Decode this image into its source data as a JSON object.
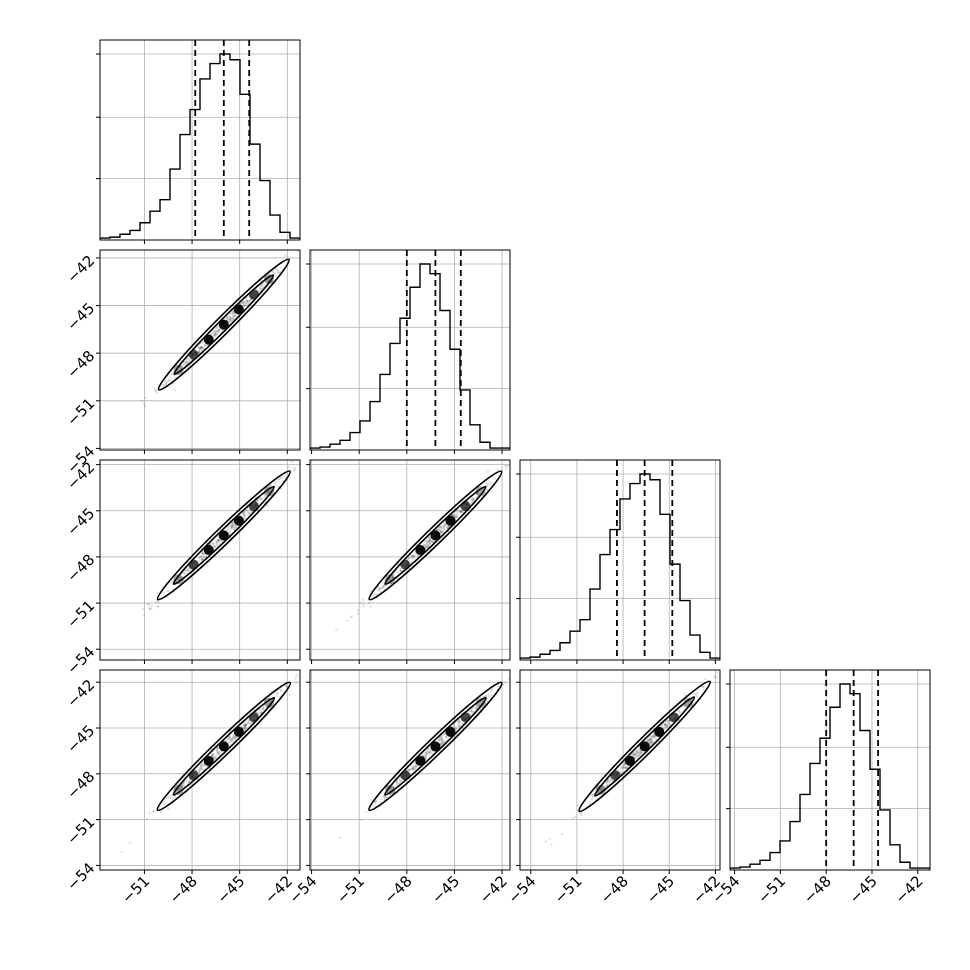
{
  "chart_data": {
    "type": "corner",
    "n_params": 4,
    "title": "",
    "axis_labels": [
      "",
      "",
      "",
      ""
    ],
    "grid": true,
    "colors": {
      "line": "#000000",
      "grid": "#b0b0b0",
      "points": "#444444"
    },
    "tick_labels": [
      "−54",
      "−51",
      "−48",
      "−45",
      "−42"
    ],
    "params": [
      {
        "range": [
          -53.8,
          -41.2
        ],
        "quantiles": [
          -47.8,
          -46.0,
          -44.4
        ],
        "x_tick_values": [
          -51,
          -48,
          -45,
          -42
        ],
        "x_tick_labels": [
          "−51",
          "−48",
          "−45",
          "−42"
        ],
        "hist_counts": [
          0.01,
          0.015,
          0.03,
          0.05,
          0.09,
          0.15,
          0.21,
          0.37,
          0.55,
          0.68,
          0.84,
          0.92,
          0.97,
          0.94,
          0.76,
          0.5,
          0.31,
          0.13,
          0.04,
          0.01
        ]
      },
      {
        "range": [
          -54.1,
          -41.5
        ],
        "quantiles": [
          -48.0,
          -46.2,
          -44.6
        ],
        "x_tick_values": [
          -54,
          -51,
          -48,
          -45,
          -42
        ],
        "x_tick_labels": [
          "−54",
          "−51",
          "−48",
          "−45",
          "−42"
        ],
        "hist_counts": [
          0.01,
          0.015,
          0.03,
          0.05,
          0.09,
          0.15,
          0.25,
          0.39,
          0.55,
          0.68,
          0.84,
          0.96,
          0.91,
          0.72,
          0.52,
          0.31,
          0.13,
          0.04,
          0.01,
          0.01
        ]
      },
      {
        "range": [
          -54.7,
          -41.7
        ],
        "quantiles": [
          -48.4,
          -46.6,
          -44.8
        ],
        "x_tick_values": [
          -54,
          -51,
          -48,
          -45,
          -42
        ],
        "x_tick_labels": [
          "−54",
          "−51",
          "−48",
          "−45",
          "−42"
        ],
        "hist_counts": [
          0.01,
          0.015,
          0.03,
          0.05,
          0.09,
          0.15,
          0.21,
          0.37,
          0.55,
          0.68,
          0.84,
          0.92,
          0.97,
          0.94,
          0.76,
          0.5,
          0.31,
          0.13,
          0.04,
          0.01
        ]
      },
      {
        "range": [
          -54.3,
          -41.2
        ],
        "quantiles": [
          -48.0,
          -46.2,
          -44.6
        ],
        "x_tick_values": [
          -54,
          -51,
          -48,
          -45,
          -42
        ],
        "x_tick_labels": [
          "−54",
          "−51",
          "−48",
          "−45",
          "−42"
        ],
        "hist_counts": [
          0.01,
          0.015,
          0.03,
          0.05,
          0.09,
          0.15,
          0.25,
          0.39,
          0.55,
          0.68,
          0.84,
          0.96,
          0.91,
          0.72,
          0.52,
          0.31,
          0.13,
          0.04,
          0.01,
          0.01
        ]
      }
    ],
    "row_y_tick_values": [
      -54,
      -51,
      -48,
      -45,
      -42
    ],
    "row_y_tick_labels": [
      "−54",
      "−51",
      "−48",
      "−45",
      "−42"
    ],
    "row_y_ranges": [
      null,
      [
        -54.1,
        -41.5
      ],
      [
        -54.7,
        -41.7
      ],
      [
        -54.3,
        -41.2
      ]
    ],
    "pair_correlation": 0.99
  }
}
